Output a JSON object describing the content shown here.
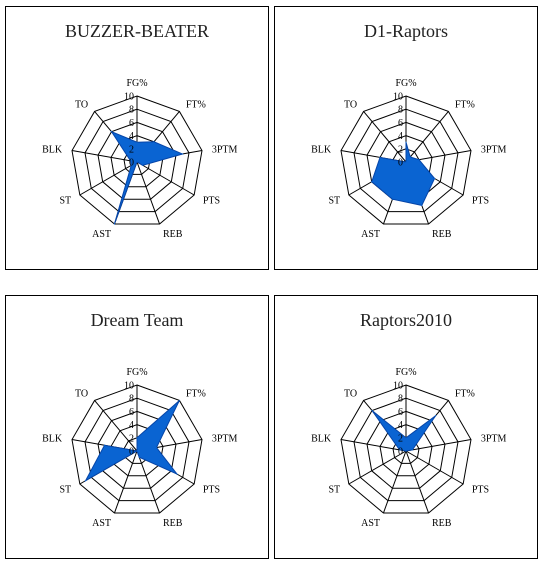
{
  "chart_data": [
    {
      "type": "radar",
      "title": "BUZZER-BEATER",
      "categories": [
        "FG%",
        "FT%",
        "3PTM",
        "PTS",
        "REB",
        "AST",
        "ST",
        "BLK",
        "TO"
      ],
      "values": [
        3,
        4,
        7,
        1,
        0,
        10,
        1,
        1,
        6
      ],
      "rlim": [
        0,
        10
      ],
      "ticks": [
        0,
        2,
        4,
        6,
        8,
        10
      ],
      "fill": "#0a64d2"
    },
    {
      "type": "radar",
      "title": "D1-Raptors",
      "categories": [
        "FG%",
        "FT%",
        "3PTM",
        "PTS",
        "REB",
        "AST",
        "ST",
        "BLK",
        "TO"
      ],
      "values": [
        3,
        1,
        2,
        5,
        7,
        6,
        6,
        4,
        0
      ],
      "rlim": [
        0,
        10
      ],
      "ticks": [
        0,
        2,
        4,
        6,
        8,
        10
      ],
      "fill": "#0a64d2"
    },
    {
      "type": "radar",
      "title": "Dream Team",
      "categories": [
        "FG%",
        "FT%",
        "3PTM",
        "PTS",
        "REB",
        "AST",
        "ST",
        "BLK",
        "TO"
      ],
      "values": [
        2,
        10,
        3,
        7,
        1,
        0,
        9,
        5,
        0
      ],
      "rlim": [
        0,
        10
      ],
      "ticks": [
        0,
        2,
        4,
        6,
        8,
        10
      ],
      "fill": "#0a64d2"
    },
    {
      "type": "radar",
      "title": "Raptors2010",
      "categories": [
        "FG%",
        "FT%",
        "3PTM",
        "PTS",
        "REB",
        "AST",
        "ST",
        "BLK",
        "TO"
      ],
      "values": [
        2,
        7,
        1,
        0,
        0,
        0,
        0,
        1,
        8
      ],
      "rlim": [
        0,
        10
      ],
      "ticks": [
        0,
        2,
        4,
        6,
        8,
        10
      ],
      "fill": "#0a64d2"
    }
  ]
}
